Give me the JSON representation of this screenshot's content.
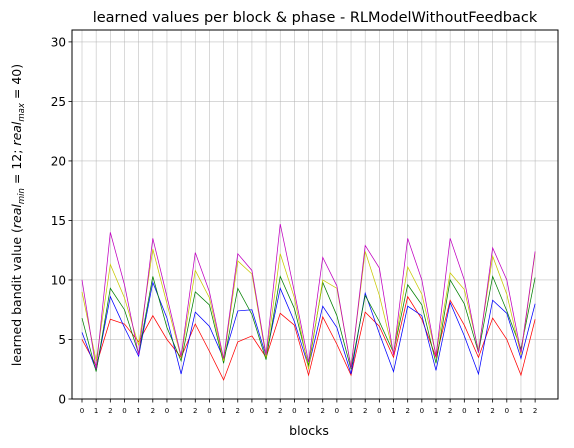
{
  "chart_data": {
    "type": "line",
    "title": "learned values per block & phase - RLModelWithoutFeedback",
    "xlabel": "blocks",
    "ylabel_main": "learned bandit value (",
    "ylabel_min_var": "real",
    "ylabel_min_sub": "min",
    "ylabel_min_val": " = 12; ",
    "ylabel_max_var": "real",
    "ylabel_max_sub": "max",
    "ylabel_max_val": " = 40)",
    "ylim": [
      0,
      31
    ],
    "yticks": [
      "0",
      "5",
      "10",
      "15",
      "20",
      "25",
      "30"
    ],
    "x_tick_labels": [
      "0",
      "1",
      "2",
      "0",
      "1",
      "2",
      "0",
      "1",
      "2",
      "0",
      "1",
      "2",
      "0",
      "1",
      "2",
      "0",
      "1",
      "2",
      "0",
      "1",
      "2",
      "0",
      "1",
      "2",
      "0",
      "1",
      "2",
      "0",
      "1",
      "2",
      "0",
      "1",
      "2"
    ],
    "grid": true,
    "series": [
      {
        "color": "#ff0000",
        "values": [
          5.0,
          2.8,
          6.7,
          6.3,
          4.8,
          7.0,
          5.0,
          3.5,
          6.3,
          4.0,
          1.6,
          4.8,
          5.3,
          3.5,
          7.2,
          6.2,
          2.0,
          6.9,
          4.6,
          2.0,
          7.3,
          6.1,
          3.5,
          8.6,
          6.7,
          3.5,
          8.3,
          6.2,
          3.5,
          6.8,
          5.0,
          2.0,
          6.7
        ]
      },
      {
        "color": "#0000ff",
        "values": [
          5.6,
          2.4,
          8.6,
          6.0,
          3.6,
          9.8,
          6.8,
          2.1,
          7.3,
          6.1,
          3.4,
          7.4,
          7.5,
          3.6,
          9.3,
          6.5,
          2.7,
          7.8,
          6.0,
          2.1,
          8.9,
          5.5,
          2.3,
          7.8,
          7.0,
          2.4,
          8.1,
          5.3,
          2.1,
          8.3,
          7.2,
          3.4,
          8.0
        ]
      },
      {
        "color": "#008000",
        "values": [
          6.8,
          2.3,
          9.3,
          7.5,
          3.8,
          10.3,
          6.0,
          3.2,
          9.0,
          7.9,
          3.0,
          9.3,
          7.1,
          3.3,
          10.3,
          7.6,
          2.8,
          9.8,
          7.0,
          2.5,
          8.7,
          6.5,
          3.9,
          9.6,
          7.9,
          3.0,
          10.0,
          8.0,
          3.9,
          10.3,
          7.4,
          4.2,
          10.2
        ]
      },
      {
        "color": "#c8c800",
        "values": [
          9.0,
          3.2,
          11.3,
          8.5,
          4.5,
          12.6,
          8.0,
          3.5,
          10.8,
          8.5,
          3.2,
          11.6,
          10.5,
          3.5,
          12.2,
          8.5,
          2.5,
          10.0,
          9.3,
          2.7,
          12.4,
          8.7,
          3.8,
          11.1,
          8.8,
          3.7,
          10.6,
          9.2,
          4.1,
          12.0,
          8.8,
          3.7,
          12.3
        ]
      },
      {
        "color": "#c000c0",
        "values": [
          10.0,
          2.5,
          14.0,
          9.6,
          3.7,
          13.5,
          8.6,
          3.6,
          12.3,
          9.0,
          3.4,
          12.2,
          10.8,
          3.7,
          14.7,
          9.0,
          3.1,
          11.9,
          9.5,
          2.6,
          12.9,
          11.0,
          3.7,
          13.5,
          10.0,
          3.6,
          13.5,
          10.0,
          3.9,
          12.7,
          10.0,
          3.9,
          12.4
        ]
      }
    ]
  }
}
